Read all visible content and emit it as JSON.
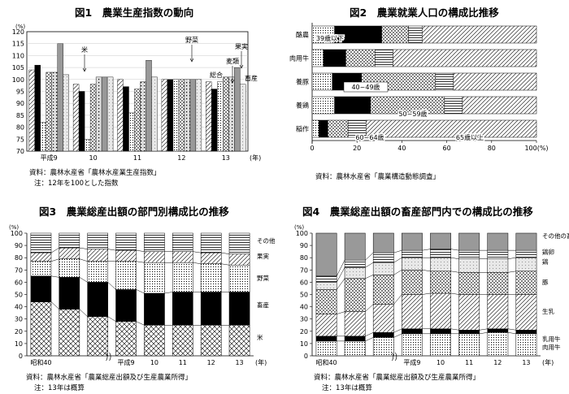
{
  "chart_data": [
    {
      "id": "fig1",
      "type": "bar",
      "title": "図1　農業生産指数の動向",
      "ylabel": "(%)",
      "xlabel": "(年)",
      "ylim": [
        70,
        120
      ],
      "yticks": [
        70,
        75,
        80,
        85,
        90,
        95,
        100,
        105,
        110,
        115,
        120
      ],
      "categories": [
        "平成9",
        "10",
        "11",
        "12",
        "13"
      ],
      "series": [
        {
          "name": "米",
          "pattern": "diag",
          "values": [
            104,
            98,
            100,
            100,
            99
          ]
        },
        {
          "name": "",
          "pattern": "black",
          "values": [
            106,
            95,
            97,
            100,
            96
          ]
        },
        {
          "name": "",
          "pattern": "dots",
          "values": [
            82,
            75,
            86,
            100,
            99
          ]
        },
        {
          "name": "野菜",
          "pattern": "cross",
          "values": [
            103,
            98,
            96,
            100,
            101
          ]
        },
        {
          "name": "麦類",
          "pattern": "hdots",
          "values": [
            103,
            101,
            99,
            100,
            101
          ]
        },
        {
          "name": "",
          "pattern": "gray",
          "values": [
            115,
            101,
            108,
            100,
            105
          ]
        },
        {
          "name": "",
          "pattern": "light",
          "values": [
            102,
            101,
            101,
            100,
            98
          ]
        }
      ],
      "annotations": [
        {
          "text": "米",
          "arrow": "down"
        },
        {
          "text": "野菜",
          "arrow": "down"
        },
        {
          "text": "果実",
          "arrow": "down"
        },
        {
          "text": "麦類",
          "arrow": "down"
        },
        {
          "text": "総合",
          "arrow": "none"
        },
        {
          "text": "畜産",
          "arrow": "none"
        }
      ],
      "source": "資料：農林水産省「農林水産業生産指数」",
      "note": "注：12年を100とした指数"
    },
    {
      "id": "fig2",
      "type": "bar",
      "orientation": "horizontal-stacked",
      "title": "図2　農業就業人口の構成比推移",
      "xlim": [
        0,
        100
      ],
      "xticks": [
        0,
        20,
        40,
        60,
        80,
        100
      ],
      "xlabel": "100(%)",
      "categories": [
        "酪農",
        "肉用牛",
        "養豚",
        "養鶏",
        "稲作"
      ],
      "age_groups": [
        {
          "label": "39歳以下",
          "pattern": "dots"
        },
        {
          "label": "40~49歳",
          "pattern": "black"
        },
        {
          "label": "50~59歳",
          "pattern": "cross"
        },
        {
          "label": "60~64歳",
          "pattern": "hlines"
        },
        {
          "label": "65歳以上",
          "pattern": "diag"
        }
      ],
      "values": [
        [
          10,
          21,
          12,
          6,
          51
        ],
        [
          5,
          10,
          13,
          8,
          64
        ],
        [
          9,
          13,
          33,
          8,
          37
        ],
        [
          10,
          16,
          33,
          8,
          33
        ],
        [
          3,
          4,
          9,
          8,
          76
        ]
      ],
      "source": "資料：農林水産省「農業構造動態調査」"
    },
    {
      "id": "fig3",
      "type": "bar",
      "orientation": "vertical-stacked",
      "title": "図3　農業総産出額の部門別構成比の推移",
      "ylabel": "(%)",
      "xlabel": "(年)",
      "ylim": [
        0,
        100
      ],
      "yticks": [
        0,
        10,
        20,
        30,
        40,
        50,
        60,
        70,
        80,
        90,
        100
      ],
      "categories": [
        "昭和40",
        "",
        "",
        "平成9",
        "10",
        "11",
        "12",
        "13"
      ],
      "segments": [
        {
          "label": "米",
          "pattern": "xcross"
        },
        {
          "label": "畜産",
          "pattern": "black"
        },
        {
          "label": "野菜",
          "pattern": "dots"
        },
        {
          "label": "果実",
          "pattern": "diag"
        },
        {
          "label": "その他",
          "pattern": "hlines"
        }
      ],
      "values": [
        [
          44,
          21,
          12,
          7,
          16
        ],
        [
          38,
          26,
          15,
          9,
          12
        ],
        [
          32,
          28,
          17,
          10,
          13
        ],
        [
          28,
          26,
          23,
          9,
          14
        ],
        [
          25,
          26,
          25,
          9,
          15
        ],
        [
          25,
          27,
          24,
          9,
          15
        ],
        [
          25,
          27,
          23,
          9,
          16
        ],
        [
          25,
          27,
          22,
          9,
          17
        ]
      ],
      "source": "資料：農林水産省「農業総産出額及び生産農業所得」",
      "note": "注：13年は概算"
    },
    {
      "id": "fig4",
      "type": "bar",
      "orientation": "vertical-stacked",
      "title": "図4　農業総産出額の畜産部門内での構成比の推移",
      "ylabel": "(%)",
      "xlabel": "(年)",
      "ylim": [
        0,
        100
      ],
      "yticks": [
        0,
        10,
        20,
        30,
        40,
        50,
        60,
        70,
        80,
        90,
        100
      ],
      "categories": [
        "昭和40",
        "",
        "",
        "平成9",
        "10",
        "11",
        "12",
        "13"
      ],
      "segments": [
        {
          "label": "肉用牛",
          "pattern": "dots"
        },
        {
          "label": "乳用牛",
          "pattern": "black"
        },
        {
          "label": "生乳",
          "pattern": "diag"
        },
        {
          "label": "豚",
          "pattern": "cross"
        },
        {
          "label": "鶏",
          "pattern": "light"
        },
        {
          "label": "鶏卵",
          "pattern": "hlines"
        },
        {
          "label": "その他の畜産物",
          "pattern": "gray"
        }
      ],
      "values": [
        [
          12,
          4,
          18,
          20,
          6,
          5,
          35
        ],
        [
          12,
          4,
          20,
          27,
          9,
          6,
          22
        ],
        [
          15,
          4,
          23,
          24,
          10,
          8,
          16
        ],
        [
          18,
          4,
          28,
          20,
          10,
          6,
          14
        ],
        [
          18,
          4,
          29,
          18,
          11,
          7,
          13
        ],
        [
          18,
          3,
          29,
          18,
          11,
          7,
          14
        ],
        [
          19,
          3,
          28,
          18,
          11,
          7,
          14
        ],
        [
          18,
          3,
          29,
          19,
          11,
          6,
          14
        ]
      ],
      "source": "資料：農林水産省「農業総産出額及び生産農業所得」",
      "note": "注：13年は概算"
    }
  ]
}
